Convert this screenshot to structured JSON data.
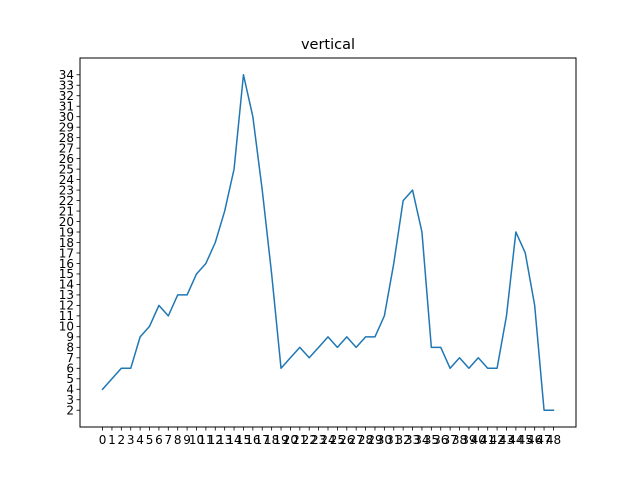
{
  "chart_data": {
    "type": "line",
    "title": "vertical",
    "xlabel": "",
    "ylabel": "",
    "x": [
      0,
      1,
      2,
      3,
      4,
      5,
      6,
      7,
      8,
      9,
      10,
      11,
      12,
      13,
      14,
      15,
      16,
      17,
      18,
      19,
      20,
      21,
      22,
      23,
      24,
      25,
      26,
      27,
      28,
      29,
      30,
      31,
      32,
      33,
      34,
      35,
      36,
      37,
      38,
      39,
      40,
      41,
      42,
      43,
      44,
      45,
      46,
      47,
      48
    ],
    "series": [
      {
        "values": [
          4,
          5,
          6,
          6,
          9,
          10,
          12,
          11,
          13,
          13,
          15,
          16,
          18,
          21,
          25,
          34,
          30,
          23,
          15,
          6,
          7,
          8,
          7,
          8,
          9,
          8,
          9,
          8,
          9,
          9,
          11,
          16,
          22,
          23,
          19,
          8,
          8,
          6,
          7,
          6,
          7,
          6,
          6,
          11,
          19,
          17,
          12,
          2,
          2
        ],
        "color": "#1f77b4"
      }
    ],
    "xlim": [
      -2.4,
      50.4
    ],
    "ylim": [
      0.4,
      35.6
    ],
    "xticks": [
      0,
      1,
      2,
      3,
      4,
      5,
      6,
      7,
      8,
      9,
      10,
      11,
      12,
      13,
      14,
      15,
      16,
      17,
      18,
      19,
      20,
      21,
      22,
      23,
      24,
      25,
      26,
      27,
      28,
      29,
      30,
      31,
      32,
      33,
      34,
      35,
      36,
      37,
      38,
      39,
      40,
      41,
      42,
      43,
      44,
      45,
      46,
      47,
      48
    ],
    "yticks": [
      2,
      3,
      4,
      5,
      6,
      7,
      8,
      9,
      10,
      11,
      12,
      13,
      14,
      15,
      16,
      17,
      18,
      19,
      20,
      21,
      22,
      23,
      24,
      25,
      26,
      27,
      28,
      29,
      30,
      31,
      32,
      33,
      34
    ],
    "grid": false,
    "legend": "none"
  }
}
